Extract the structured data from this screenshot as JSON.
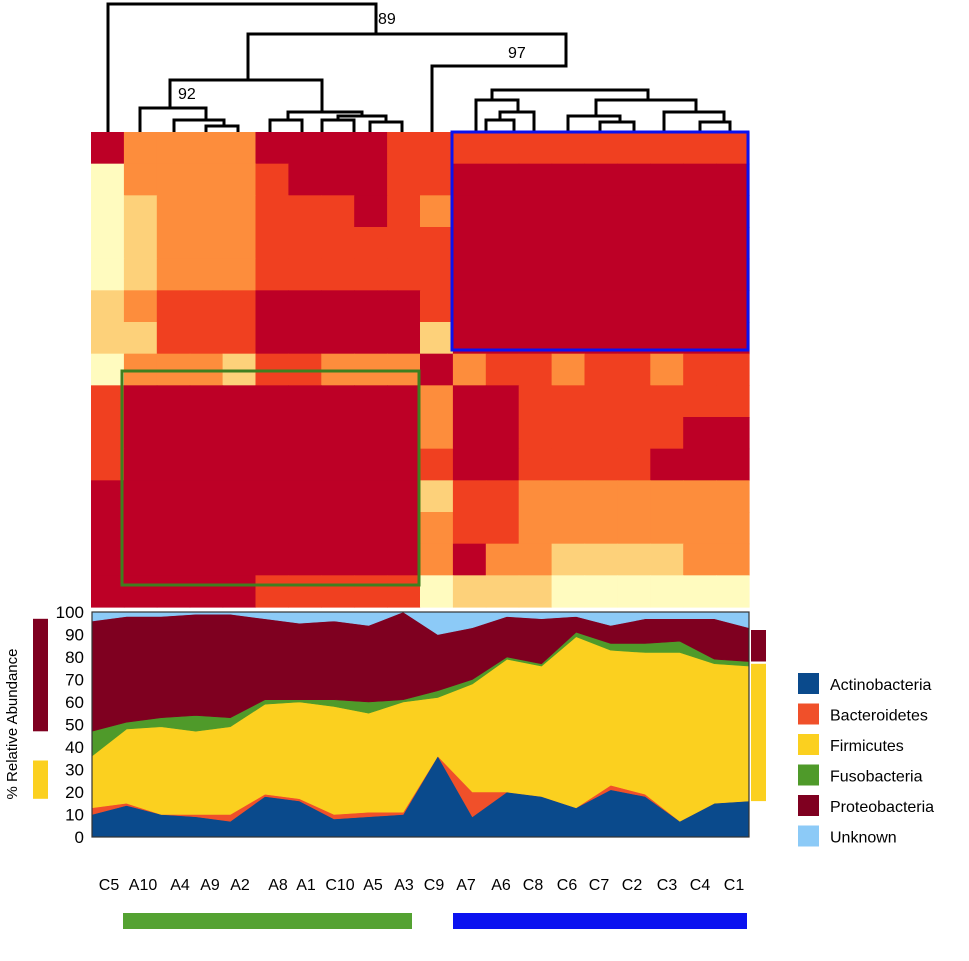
{
  "colors": {
    "heat": [
      "#fffbbf",
      "#fdd17a",
      "#fd8d3c",
      "#f04020",
      "#bd0026"
    ],
    "group_a": "#54a232",
    "group_c": "#0b12f0",
    "dendrogram": "#000000"
  },
  "dendrogram": {
    "bootstrap": [
      "89",
      "97",
      "92"
    ]
  },
  "heatmap": {
    "samples": [
      "C5",
      "A10",
      "A4",
      "A9",
      "A2",
      "A8",
      "A1",
      "C10",
      "A5",
      "A3",
      "C9",
      "A7",
      "A6",
      "C8",
      "C6",
      "C7",
      "C2",
      "C3",
      "C4",
      "C1"
    ],
    "levels": [
      [
        4,
        2,
        2,
        2,
        2,
        4,
        4,
        4,
        4,
        3,
        3,
        3,
        3,
        3,
        3,
        3,
        3,
        3,
        3,
        3
      ],
      [
        0,
        2,
        2,
        2,
        2,
        3,
        4,
        4,
        4,
        3,
        3,
        4,
        4,
        4,
        4,
        4,
        4,
        4,
        4,
        4
      ],
      [
        0,
        1,
        2,
        2,
        2,
        3,
        3,
        3,
        4,
        3,
        2,
        4,
        4,
        4,
        4,
        4,
        4,
        4,
        4,
        4
      ],
      [
        0,
        1,
        2,
        2,
        2,
        3,
        3,
        3,
        3,
        3,
        3,
        4,
        4,
        4,
        4,
        4,
        4,
        4,
        4,
        4
      ],
      [
        0,
        1,
        2,
        2,
        2,
        3,
        3,
        3,
        3,
        3,
        3,
        4,
        4,
        4,
        4,
        4,
        4,
        4,
        4,
        4
      ],
      [
        1,
        2,
        3,
        3,
        3,
        4,
        4,
        4,
        4,
        4,
        3,
        4,
        4,
        4,
        4,
        4,
        4,
        4,
        4,
        4
      ],
      [
        1,
        1,
        3,
        3,
        3,
        4,
        4,
        4,
        4,
        4,
        1,
        4,
        4,
        4,
        4,
        4,
        4,
        4,
        4,
        4
      ],
      [
        0,
        2,
        2,
        2,
        1,
        3,
        3,
        2,
        2,
        2,
        4,
        2,
        3,
        3,
        2,
        3,
        3,
        2,
        3,
        3
      ],
      [
        3,
        4,
        4,
        4,
        4,
        4,
        4,
        4,
        4,
        4,
        2,
        4,
        4,
        3,
        3,
        3,
        3,
        3,
        3,
        3
      ],
      [
        3,
        4,
        4,
        4,
        4,
        4,
        4,
        4,
        4,
        4,
        2,
        4,
        4,
        3,
        3,
        3,
        3,
        3,
        4,
        4
      ],
      [
        3,
        4,
        4,
        4,
        4,
        4,
        4,
        4,
        4,
        4,
        3,
        4,
        4,
        3,
        3,
        3,
        3,
        4,
        4,
        4
      ],
      [
        4,
        4,
        4,
        4,
        4,
        4,
        4,
        4,
        4,
        4,
        1,
        3,
        3,
        2,
        2,
        2,
        2,
        2,
        2,
        2
      ],
      [
        4,
        4,
        4,
        4,
        4,
        4,
        4,
        4,
        4,
        4,
        2,
        3,
        3,
        2,
        2,
        2,
        2,
        2,
        2,
        2
      ],
      [
        4,
        4,
        4,
        4,
        4,
        4,
        4,
        4,
        4,
        4,
        2,
        4,
        2,
        2,
        1,
        1,
        1,
        1,
        2,
        2
      ],
      [
        4,
        4,
        4,
        4,
        4,
        3,
        3,
        3,
        3,
        3,
        0,
        1,
        1,
        1,
        0,
        0,
        0,
        0,
        0,
        0
      ]
    ]
  },
  "chart_data": {
    "type": "area",
    "stacked": true,
    "title": "",
    "xlabel": "",
    "ylabel": "% Relative Abundance",
    "ylim": [
      0,
      100
    ],
    "yticks": [
      "0",
      "10",
      "20",
      "30",
      "40",
      "50",
      "60",
      "70",
      "80",
      "90",
      "100"
    ],
    "categories": [
      "C5",
      "A10",
      "A4",
      "A9",
      "A2",
      "A8",
      "A1",
      "C10",
      "A5",
      "A3",
      "C9",
      "A7",
      "A6",
      "C8",
      "C6",
      "C7",
      "C2",
      "C3",
      "C4",
      "C1"
    ],
    "series": [
      {
        "name": "Actinobacteria",
        "color": "#0a4a8c",
        "values": [
          10,
          14,
          10,
          9,
          7,
          18,
          16,
          8,
          9,
          10,
          36,
          9,
          20,
          18,
          13,
          21,
          18,
          7,
          15,
          16
        ]
      },
      {
        "name": "Bacteroidetes",
        "color": "#f0502a",
        "values": [
          3,
          1,
          0,
          1,
          3,
          1,
          1,
          2,
          2,
          1,
          0,
          11,
          0,
          0,
          0,
          2,
          1,
          0,
          0,
          0
        ]
      },
      {
        "name": "Firmicutes",
        "color": "#fbd01f",
        "values": [
          23,
          33,
          39,
          37,
          39,
          40,
          43,
          48,
          44,
          49,
          26,
          48,
          59,
          58,
          76,
          60,
          63,
          75,
          62,
          60
        ]
      },
      {
        "name": "Fusobacteria",
        "color": "#4f9a2a",
        "values": [
          11,
          3,
          4,
          7,
          4,
          2,
          1,
          3,
          5,
          1,
          3,
          2,
          1,
          1,
          2,
          3,
          4,
          5,
          2,
          2
        ]
      },
      {
        "name": "Proteobacteria",
        "color": "#7f0020",
        "values": [
          49,
          47,
          45,
          45,
          46,
          36,
          34,
          35,
          34,
          39,
          25,
          23,
          18,
          20,
          7,
          8,
          11,
          10,
          18,
          15
        ]
      },
      {
        "name": "Unknown",
        "color": "#8ccaf7",
        "values": [
          4,
          2,
          2,
          1,
          1,
          3,
          5,
          4,
          6,
          0,
          10,
          7,
          2,
          3,
          2,
          6,
          3,
          3,
          3,
          7
        ]
      }
    ],
    "group_ranges": {
      "left": [
        {
          "phylum": "Proteobacteria",
          "from": 47,
          "to": 97,
          "color": "#7f0020"
        },
        {
          "phylum": "Firmicutes",
          "from": 17,
          "to": 34,
          "color": "#fbd01f"
        }
      ],
      "right": [
        {
          "phylum": "Proteobacteria",
          "from": 78,
          "to": 92,
          "color": "#7f0020"
        },
        {
          "phylum": "Firmicutes",
          "from": 16,
          "to": 77,
          "color": "#fbd01f"
        }
      ]
    }
  }
}
